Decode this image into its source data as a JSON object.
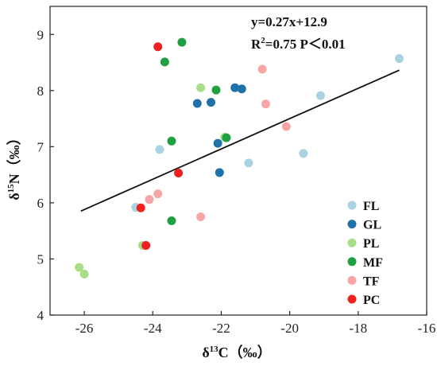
{
  "chart_data": {
    "type": "scatter",
    "xlabel": {
      "prefix": "δ",
      "sup": "13",
      "main": "C（‰）"
    },
    "ylabel": {
      "prefix": "δ",
      "sup": "15",
      "main": "N（‰）"
    },
    "xlim": [
      -27,
      -16
    ],
    "ylim": [
      4,
      9.5
    ],
    "xticks": [
      -26,
      -24,
      -22,
      -20,
      -18,
      -16
    ],
    "yticks": [
      4,
      5,
      6,
      7,
      8,
      9
    ],
    "equation_line1": "y=0.27x+12.9",
    "equation_line2": {
      "R": "R",
      "sup": "2",
      "rest": "=0.75 P＜0.01"
    },
    "trendline": {
      "slope": 0.27,
      "intercept": 12.9,
      "x_start": -26.1,
      "x_end": -16.8
    },
    "legend_position": "right",
    "series": [
      {
        "name": "FL",
        "color": "#a9d2e3",
        "points": [
          [
            -16.8,
            8.57
          ],
          [
            -19.1,
            7.91
          ],
          [
            -19.6,
            6.88
          ],
          [
            -21.2,
            6.71
          ],
          [
            -23.8,
            6.95
          ],
          [
            -24.5,
            5.92
          ]
        ]
      },
      {
        "name": "GL",
        "color": "#1e72a8",
        "points": [
          [
            -21.6,
            8.05
          ],
          [
            -21.4,
            8.03
          ],
          [
            -22.3,
            7.79
          ],
          [
            -22.7,
            7.77
          ],
          [
            -22.1,
            7.06
          ],
          [
            -22.05,
            6.54
          ]
        ]
      },
      {
        "name": "PL",
        "color": "#a6de8a",
        "points": [
          [
            -22.6,
            8.05
          ],
          [
            -21.9,
            7.17
          ],
          [
            -24.3,
            5.24
          ],
          [
            -26.15,
            4.85
          ],
          [
            -26.0,
            4.73
          ]
        ]
      },
      {
        "name": "MF",
        "color": "#21a043",
        "points": [
          [
            -23.15,
            8.86
          ],
          [
            -23.65,
            8.51
          ],
          [
            -22.15,
            8.01
          ],
          [
            -21.85,
            7.16
          ],
          [
            -23.45,
            7.1
          ],
          [
            -23.45,
            5.68
          ]
        ]
      },
      {
        "name": "TF",
        "color": "#f8a5a5",
        "points": [
          [
            -20.8,
            8.38
          ],
          [
            -20.7,
            7.76
          ],
          [
            -20.1,
            7.36
          ],
          [
            -23.85,
            6.16
          ],
          [
            -24.1,
            6.06
          ],
          [
            -22.6,
            5.75
          ]
        ]
      },
      {
        "name": "PC",
        "color": "#ee2020",
        "points": [
          [
            -23.85,
            8.78
          ],
          [
            -23.25,
            6.53
          ],
          [
            -24.35,
            5.91
          ],
          [
            -24.2,
            5.24
          ]
        ]
      }
    ]
  }
}
